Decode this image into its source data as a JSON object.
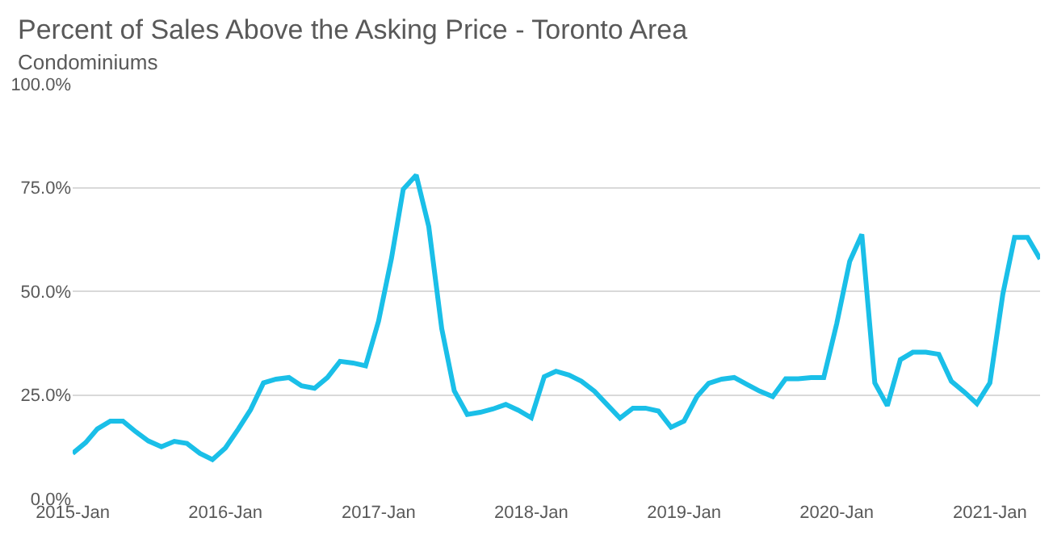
{
  "chart_data": {
    "type": "line",
    "title": "Percent of Sales Above the Asking Price - Toronto Area",
    "subtitle": "Condominiums",
    "x": [
      "2015-01",
      "2015-02",
      "2015-03",
      "2015-04",
      "2015-05",
      "2015-06",
      "2015-07",
      "2015-08",
      "2015-09",
      "2015-10",
      "2015-11",
      "2015-12",
      "2016-01",
      "2016-02",
      "2016-03",
      "2016-04",
      "2016-05",
      "2016-06",
      "2016-07",
      "2016-08",
      "2016-09",
      "2016-10",
      "2016-11",
      "2016-12",
      "2017-01",
      "2017-02",
      "2017-03",
      "2017-04",
      "2017-05",
      "2017-06",
      "2017-07",
      "2017-08",
      "2017-09",
      "2017-10",
      "2017-11",
      "2017-12",
      "2018-01",
      "2018-02",
      "2018-03",
      "2018-04",
      "2018-05",
      "2018-06",
      "2018-07",
      "2018-08",
      "2018-09",
      "2018-10",
      "2018-11",
      "2018-12",
      "2019-01",
      "2019-02",
      "2019-03",
      "2019-04",
      "2019-05",
      "2019-06",
      "2019-07",
      "2019-08",
      "2019-09",
      "2019-10",
      "2019-11",
      "2019-12",
      "2020-01",
      "2020-02",
      "2020-03",
      "2020-04",
      "2020-05",
      "2020-06",
      "2020-07",
      "2020-08",
      "2020-09",
      "2020-10",
      "2020-11",
      "2020-12",
      "2021-01",
      "2021-02",
      "2021-03",
      "2021-04",
      "2021-05"
    ],
    "series": [
      {
        "color": "#1abfe8",
        "values": [
          10.9,
          13.5,
          16.8,
          18.7,
          18.7,
          16.1,
          13.9,
          12.5,
          13.8,
          13.3,
          10.9,
          9.4,
          12.2,
          16.8,
          21.4,
          27.9,
          28.8,
          29.2,
          27.2,
          26.6,
          29.2,
          33.1,
          32.7,
          32,
          42.8,
          58,
          74.6,
          78,
          65.6,
          41,
          26,
          20.3,
          20.8,
          21.6,
          22.7,
          21.3,
          19.5,
          29.4,
          30.7,
          29.8,
          28.3,
          25.9,
          22.7,
          19.4,
          21.8,
          21.8,
          21.1,
          17.2,
          18.7,
          24.6,
          27.8,
          28.8,
          29.2,
          27.5,
          25.9,
          24.6,
          28.9,
          28.9,
          29.2,
          29.2,
          42.2,
          57.2,
          63.7,
          27.9,
          22.4,
          33.5,
          35.3,
          35.3,
          34.8,
          28.3,
          25.7,
          22.9,
          27.9,
          49.3,
          63,
          63,
          57.8
        ]
      }
    ],
    "xlim": [
      "2015-01",
      "2021-05"
    ],
    "xticks": [
      {
        "value": "2015-01",
        "label": "2015-Jan"
      },
      {
        "value": "2016-01",
        "label": "2016-Jan"
      },
      {
        "value": "2017-01",
        "label": "2017-Jan"
      },
      {
        "value": "2018-01",
        "label": "2018-Jan"
      },
      {
        "value": "2019-01",
        "label": "2019-Jan"
      },
      {
        "value": "2020-01",
        "label": "2020-Jan"
      },
      {
        "value": "2021-01",
        "label": "2021-Jan"
      }
    ],
    "ylim": [
      0,
      100
    ],
    "yticks": [
      {
        "value": 0,
        "label": "0.0%"
      },
      {
        "value": 25,
        "label": "25.0%"
      },
      {
        "value": 50,
        "label": "50.0%"
      },
      {
        "value": 75,
        "label": "75.0%"
      },
      {
        "value": 100,
        "label": "100.0%"
      }
    ],
    "grid": "y",
    "legend": false,
    "marker": "none",
    "line_style": "solid"
  }
}
